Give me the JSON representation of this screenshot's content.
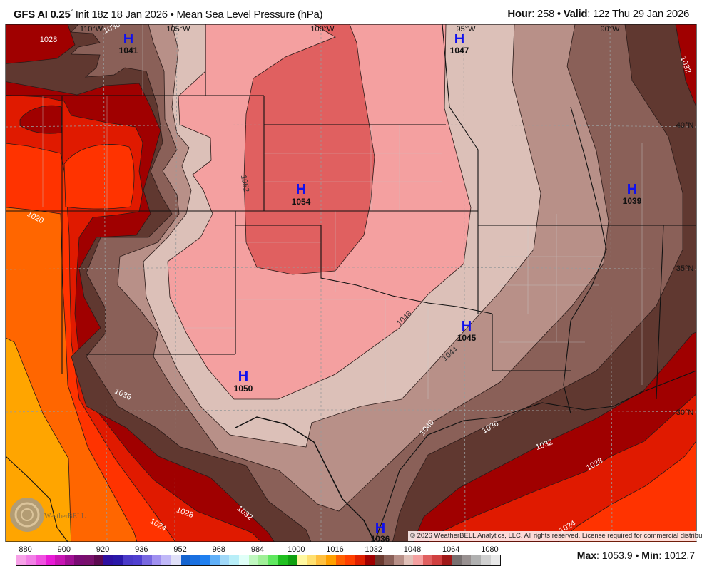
{
  "header": {
    "model": "GFS AI 0.25",
    "degree": "°",
    "init": " Init 18z 18 Jan 2026 • Mean Sea Level Pressure (hPa)",
    "hour_label": "Hour",
    "hour_value": ": 258 • ",
    "valid_label": "Valid",
    "valid_value": ": 12z Thu 29 Jan 2026"
  },
  "grid_labels": {
    "lon": [
      "110°W",
      "105°W",
      "100°W",
      "95°W",
      "90°W"
    ],
    "lat": [
      "40°N",
      "35°N",
      "30°N"
    ]
  },
  "highs": [
    {
      "letter": "H",
      "value": "1041"
    },
    {
      "letter": "H",
      "value": "1047"
    },
    {
      "letter": "H",
      "value": "1054"
    },
    {
      "letter": "H",
      "value": "1039"
    },
    {
      "letter": "H",
      "value": "1045"
    },
    {
      "letter": "H",
      "value": "1050"
    },
    {
      "letter": "H",
      "value": "1036"
    }
  ],
  "contour_labels": [
    "1028",
    "1036",
    "1020",
    "1052",
    "1048",
    "1044",
    "1040",
    "1036",
    "1036",
    "1032",
    "1028",
    "1024",
    "1028",
    "1024",
    "1032",
    "1032"
  ],
  "logo": "WeatherBELL",
  "copyright": "© 2026 WeatherBELL Analytics, LLC. All rights reserved. License required for commercial distribution.",
  "colorbar": {
    "labels": [
      "880",
      "900",
      "920",
      "936",
      "952",
      "968",
      "984",
      "1000",
      "1016",
      "1032",
      "1048",
      "1064",
      "1080"
    ],
    "colors": [
      "#f7a1e8",
      "#f27fe6",
      "#f050e0",
      "#e81ad6",
      "#c814b4",
      "#a01094",
      "#7a0c74",
      "#78106c",
      "#5c0a50",
      "#2e10a0",
      "#2a18a8",
      "#4a3ac8",
      "#5040d0",
      "#7868e0",
      "#a090f0",
      "#c0b8f8",
      "#e0e0f8",
      "#1464d0",
      "#1a70e0",
      "#2080f0",
      "#60b0f8",
      "#a0d8f8",
      "#b8eef8",
      "#e0fff8",
      "#c0f8c0",
      "#a0f098",
      "#60e860",
      "#20c020",
      "#10a010",
      "#fff8a0",
      "#ffe070",
      "#ffc040",
      "#ffa000",
      "#ff6000",
      "#ff4000",
      "#e02000",
      "#a00000",
      "#6a3a30",
      "#8a6058",
      "#b89088",
      "#e0c0b8",
      "#f4a0a0",
      "#e06060",
      "#d04040",
      "#a01818",
      "#787070",
      "#989090",
      "#b0b0b0",
      "#d0d0d0",
      "#e8e8e8"
    ]
  },
  "stats": {
    "max_label": "Max",
    "max_value": ": 1053.9 • ",
    "min_label": "Min",
    "min_value": ": 1012.7"
  }
}
